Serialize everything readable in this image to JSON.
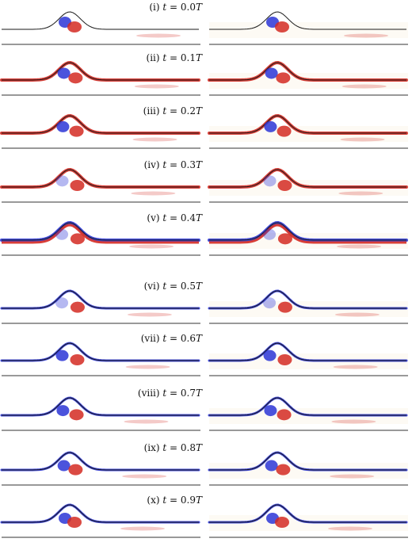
{
  "figure": {
    "panels": [
      {
        "roman": "(i)",
        "time": "0.0",
        "unit": "T"
      },
      {
        "roman": "(ii)",
        "time": "0.1",
        "unit": "T"
      },
      {
        "roman": "(iii)",
        "time": "0.2",
        "unit": "T"
      },
      {
        "roman": "(iv)",
        "time": "0.3",
        "unit": "T"
      },
      {
        "roman": "(v)",
        "time": "0.4",
        "unit": "T"
      },
      {
        "roman": "(vi)",
        "time": "0.5",
        "unit": "T"
      },
      {
        "roman": "(vii)",
        "time": "0.6",
        "unit": "T"
      },
      {
        "roman": "(viii)",
        "time": "0.7",
        "unit": "T"
      },
      {
        "roman": "(ix)",
        "time": "0.8",
        "unit": "T"
      },
      {
        "roman": "(x)",
        "time": "0.9",
        "unit": "T"
      }
    ],
    "colors": {
      "positive": "#d42a22",
      "negative": "#2b35d6",
      "interface": "#1a1a1a",
      "wall": "#333333"
    }
  }
}
